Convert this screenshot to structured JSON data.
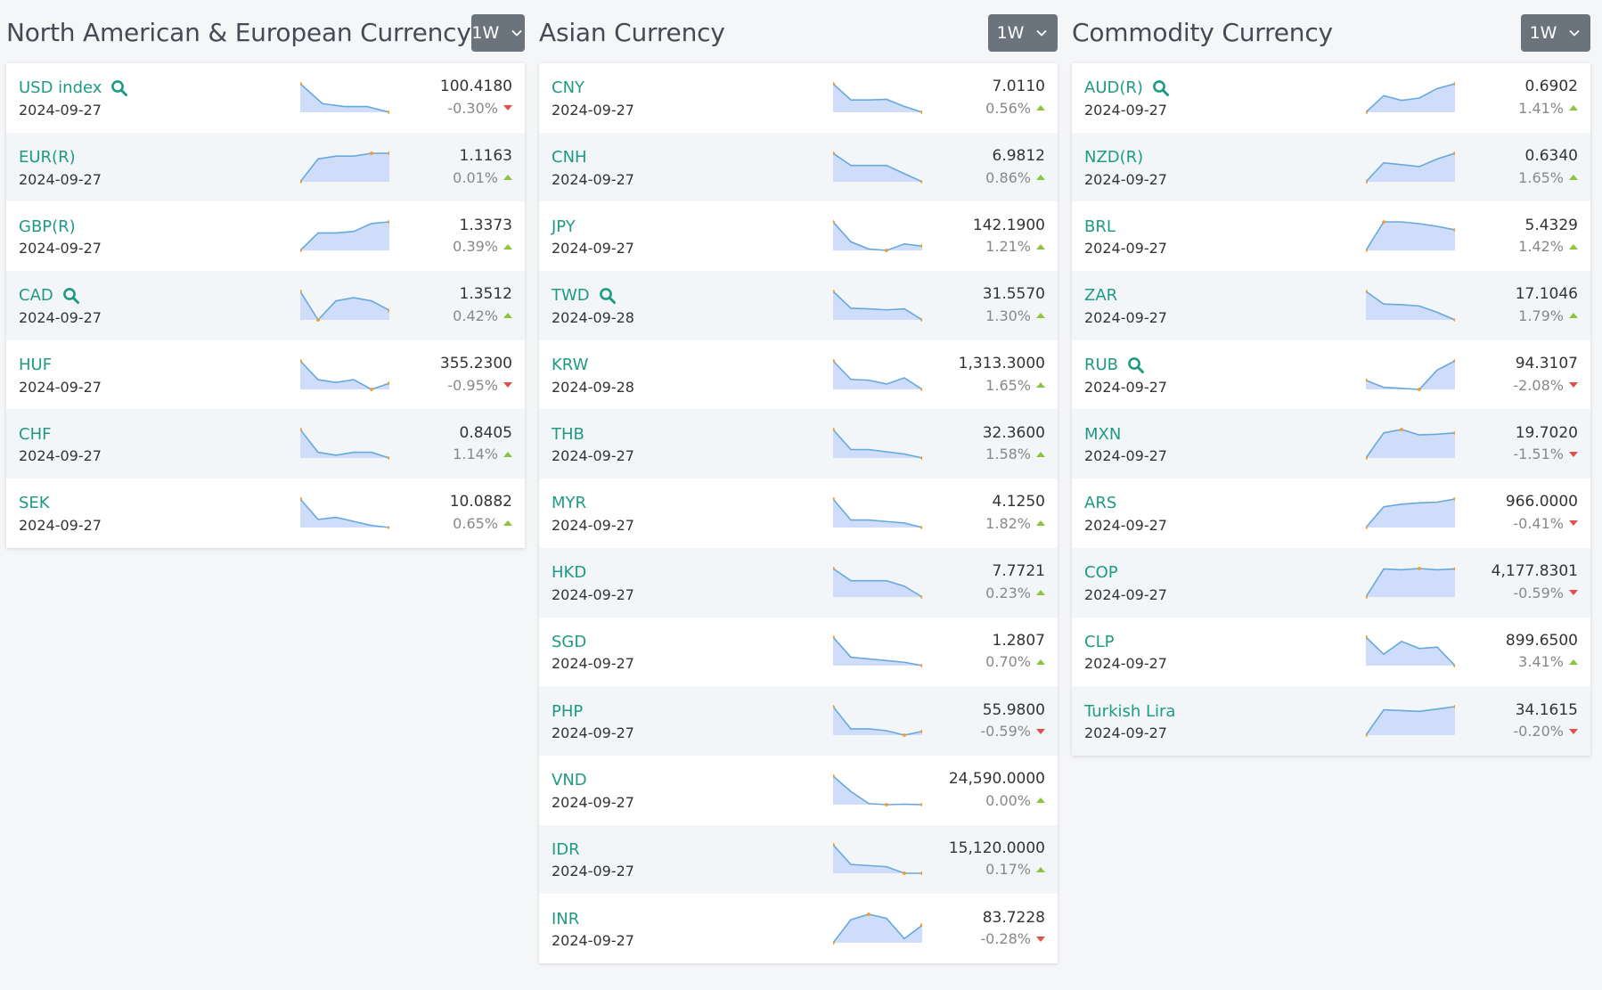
{
  "colors": {
    "accent": "#1f9a83",
    "up": "#8cc43f",
    "down": "#e24d4d",
    "spark_line": "#66a9dd",
    "spark_fill": "#cfddfb",
    "spark_point": "#f59a23"
  },
  "columns": [
    {
      "title": "North American & European Currency",
      "period": "1W",
      "rows": [
        {
          "name": "USD index",
          "search": true,
          "date": "2024-09-27",
          "value": "100.4180",
          "change": "-0.30%",
          "dir": "down",
          "spark": [
            101.4,
            100.7,
            100.6,
            100.6,
            100.4
          ]
        },
        {
          "name": "EUR(R)",
          "search": false,
          "date": "2024-09-27",
          "value": "1.1163",
          "change": "0.01%",
          "dir": "up",
          "spark": [
            1.107,
            1.115,
            1.116,
            1.116,
            1.117,
            1.117
          ]
        },
        {
          "name": "GBP(R)",
          "search": false,
          "date": "2024-09-27",
          "value": "1.3373",
          "change": "0.39%",
          "dir": "up",
          "spark": [
            1.319,
            1.33,
            1.33,
            1.331,
            1.336,
            1.337
          ]
        },
        {
          "name": "CAD",
          "search": true,
          "date": "2024-09-27",
          "value": "1.3512",
          "change": "0.42%",
          "dir": "up",
          "spark": [
            1.357,
            1.348,
            1.354,
            1.355,
            1.354,
            1.351
          ]
        },
        {
          "name": "HUF",
          "search": false,
          "date": "2024-09-27",
          "value": "355.2300",
          "change": "-0.95%",
          "dir": "down",
          "spark": [
            359.0,
            356.3,
            355.9,
            356.3,
            354.9,
            355.8
          ]
        },
        {
          "name": "CHF",
          "search": false,
          "date": "2024-09-27",
          "value": "0.8405",
          "change": "1.14%",
          "dir": "up",
          "spark": [
            0.851,
            0.843,
            0.842,
            0.843,
            0.843,
            0.841
          ]
        },
        {
          "name": "SEK",
          "search": false,
          "date": "2024-09-27",
          "value": "10.0882",
          "change": "0.65%",
          "dir": "up",
          "spark": [
            10.23,
            10.13,
            10.14,
            10.12,
            10.1,
            10.09
          ]
        }
      ]
    },
    {
      "title": "Asian Currency",
      "period": "1W",
      "rows": [
        {
          "name": "CNY",
          "search": false,
          "date": "2024-09-27",
          "value": "7.0110",
          "change": "0.56%",
          "dir": "up",
          "spark": [
            7.055,
            7.03,
            7.03,
            7.031,
            7.02,
            7.011
          ]
        },
        {
          "name": "CNH",
          "search": false,
          "date": "2024-09-27",
          "value": "6.9812",
          "change": "0.86%",
          "dir": "up",
          "spark": [
            7.05,
            7.02,
            7.02,
            7.02,
            7.0,
            6.98
          ]
        },
        {
          "name": "JPY",
          "search": false,
          "date": "2024-09-27",
          "value": "142.1900",
          "change": "1.21%",
          "dir": "up",
          "spark": [
            145.6,
            142.8,
            141.8,
            141.6,
            142.5,
            142.2
          ]
        },
        {
          "name": "TWD",
          "search": true,
          "date": "2024-09-28",
          "value": "31.5570",
          "change": "1.30%",
          "dir": "up",
          "spark": [
            32.1,
            31.78,
            31.77,
            31.75,
            31.77,
            31.56
          ]
        },
        {
          "name": "KRW",
          "search": false,
          "date": "2024-09-28",
          "value": "1,313.3000",
          "change": "1.65%",
          "dir": "up",
          "spark": [
            1350,
            1326,
            1325,
            1320,
            1328,
            1313
          ]
        },
        {
          "name": "THB",
          "search": false,
          "date": "2024-09-27",
          "value": "32.3600",
          "change": "1.58%",
          "dir": "up",
          "spark": [
            33.0,
            32.55,
            32.55,
            32.5,
            32.45,
            32.36
          ]
        },
        {
          "name": "MYR",
          "search": false,
          "date": "2024-09-27",
          "value": "4.1250",
          "change": "1.82%",
          "dir": "up",
          "spark": [
            4.22,
            4.15,
            4.15,
            4.145,
            4.14,
            4.125
          ]
        },
        {
          "name": "HKD",
          "search": false,
          "date": "2024-09-27",
          "value": "7.7721",
          "change": "0.23%",
          "dir": "up",
          "spark": [
            7.793,
            7.784,
            7.784,
            7.784,
            7.78,
            7.772
          ]
        },
        {
          "name": "SGD",
          "search": false,
          "date": "2024-09-27",
          "value": "1.2807",
          "change": "0.70%",
          "dir": "up",
          "spark": [
            1.298,
            1.286,
            1.285,
            1.284,
            1.283,
            1.281
          ]
        },
        {
          "name": "PHP",
          "search": false,
          "date": "2024-09-27",
          "value": "55.9800",
          "change": "-0.59%",
          "dir": "down",
          "spark": [
            56.65,
            56.05,
            56.05,
            56.0,
            55.88,
            55.98
          ]
        },
        {
          "name": "VND",
          "search": false,
          "date": "2024-09-27",
          "value": "24,590.0000",
          "change": "0.00%",
          "dir": "up",
          "spark": [
            24720,
            24650,
            24595,
            24590,
            24592,
            24590
          ]
        },
        {
          "name": "IDR",
          "search": false,
          "date": "2024-09-27",
          "value": "15,120.0000",
          "change": "0.17%",
          "dir": "up",
          "spark": [
            15250,
            15160,
            15155,
            15150,
            15120,
            15120
          ]
        },
        {
          "name": "INR",
          "search": false,
          "date": "2024-09-27",
          "value": "83.7228",
          "change": "-0.28%",
          "dir": "down",
          "spark": [
            83.45,
            83.62,
            83.66,
            83.63,
            83.48,
            83.58
          ]
        }
      ]
    },
    {
      "title": "Commodity Currency",
      "period": "1W",
      "rows": [
        {
          "name": "AUD(R)",
          "search": true,
          "date": "2024-09-27",
          "value": "0.6902",
          "change": "1.41%",
          "dir": "up",
          "spark": [
            0.678,
            0.685,
            0.683,
            0.684,
            0.688,
            0.69
          ]
        },
        {
          "name": "NZD(R)",
          "search": false,
          "date": "2024-09-27",
          "value": "0.6340",
          "change": "1.65%",
          "dir": "up",
          "spark": [
            0.619,
            0.629,
            0.628,
            0.627,
            0.631,
            0.634
          ]
        },
        {
          "name": "BRL",
          "search": false,
          "date": "2024-09-27",
          "value": "5.4329",
          "change": "1.42%",
          "dir": "up",
          "spark": [
            5.34,
            5.5,
            5.5,
            5.49,
            5.475,
            5.455
          ]
        },
        {
          "name": "ZAR",
          "search": false,
          "date": "2024-09-27",
          "value": "17.1046",
          "change": "1.79%",
          "dir": "up",
          "spark": [
            17.55,
            17.35,
            17.34,
            17.32,
            17.22,
            17.1
          ]
        },
        {
          "name": "RUB",
          "search": true,
          "date": "2024-09-27",
          "value": "94.3107",
          "change": "-2.08%",
          "dir": "down",
          "spark": [
            92.4,
            91.7,
            91.6,
            91.5,
            93.4,
            94.3
          ]
        },
        {
          "name": "MXN",
          "search": false,
          "date": "2024-09-27",
          "value": "19.7020",
          "change": "-1.51%",
          "dir": "down",
          "spark": [
            19.35,
            19.72,
            19.77,
            19.69,
            19.7,
            19.72
          ]
        },
        {
          "name": "ARS",
          "search": false,
          "date": "2024-09-27",
          "value": "966.0000",
          "change": "-0.41%",
          "dir": "down",
          "spark": [
            955.0,
            963.0,
            964.0,
            964.5,
            964.8,
            966.0
          ]
        },
        {
          "name": "COP",
          "search": false,
          "date": "2024-09-27",
          "value": "4,177.8301",
          "change": "-0.59%",
          "dir": "down",
          "spark": [
            4110,
            4178,
            4176,
            4179,
            4176,
            4178
          ]
        },
        {
          "name": "CLP",
          "search": false,
          "date": "2024-09-27",
          "value": "899.6500",
          "change": "3.41%",
          "dir": "up",
          "spark": [
            920,
            908,
            917,
            912,
            913,
            900
          ]
        },
        {
          "name": "Turkish Lira",
          "search": false,
          "date": "2024-09-27",
          "value": "34.1615",
          "change": "-0.20%",
          "dir": "down",
          "spark": [
            33.8,
            34.12,
            34.11,
            34.1,
            34.13,
            34.16
          ]
        }
      ]
    }
  ]
}
